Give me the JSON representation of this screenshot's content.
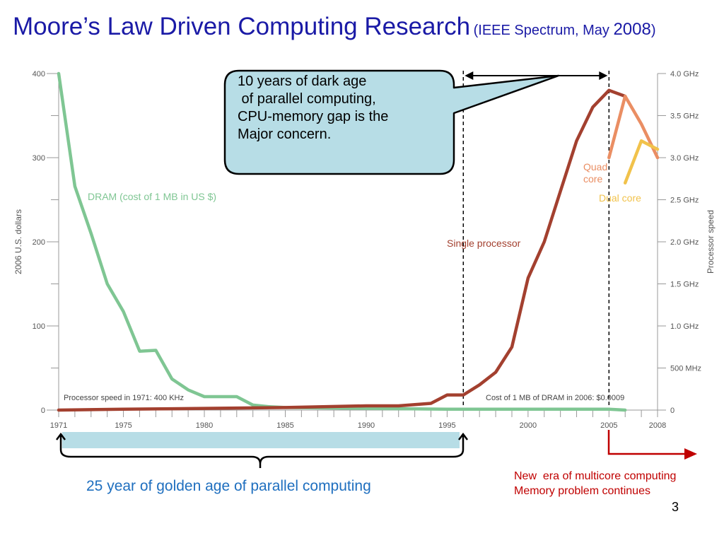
{
  "title": {
    "main": "Moore’s Law Driven Computing Research",
    "sub_open": "(IEEE Spectrum, May ",
    "sub_year": "2008",
    "sub_close": ")"
  },
  "callout": {
    "text": "10 years of dark age\n of parallel computing,\nCPU-memory gap is the\nMajor concern."
  },
  "golden_age_label": "25 year of golden age of parallel computing",
  "multicore_label": "New  era of multicore computing\nMemory problem continues",
  "page_number": "3",
  "colors": {
    "title": "#1a1aa6",
    "dram": "#7fc693",
    "single": "#a3402f",
    "quad": "#ea8e63",
    "dual": "#f1c24b",
    "callout_fill": "#b7dde6",
    "arrow_red": "#c00000",
    "golden_text": "#1f6fbf"
  },
  "chart_data": {
    "type": "line",
    "x_ticks": [
      "1971",
      "1975",
      "1980",
      "1985",
      "1990",
      "1995",
      "2000",
      "2005",
      "2008"
    ],
    "x_range": [
      1971,
      2008
    ],
    "y_left": {
      "label": "2006 U.S. dollars",
      "range": [
        0,
        400
      ],
      "ticks": [
        "0",
        "100",
        "200",
        "300",
        "400"
      ]
    },
    "y_right": {
      "label": "Processor speed",
      "range_ghz": [
        0,
        4.0
      ],
      "ticks": [
        "0",
        "500 MHz",
        "1.0 GHz",
        "1.5 GHz",
        "2.0 GHz",
        "2.5 GHz",
        "3.0 GHz",
        "3.5 GHz",
        "4.0 GHz"
      ]
    },
    "annotations": {
      "processor_1971": "Processor speed in 1971: 400 KHz",
      "dram_2006": "Cost of 1 MB of DRAM in 2006: $0.0009"
    },
    "series": [
      {
        "name": "DRAM (cost of 1 MB in US $)",
        "axis": "left",
        "x": [
          1971,
          1972,
          1973,
          1974,
          1975,
          1976,
          1977,
          1978,
          1979,
          1980,
          1981,
          1982,
          1983,
          1984,
          1985,
          1990,
          1995,
          2000,
          2005,
          2006
        ],
        "y": [
          400,
          266,
          210,
          150,
          117,
          70,
          71,
          37,
          24,
          16,
          16,
          16,
          6,
          4,
          3,
          2,
          1,
          1,
          1,
          0.0009
        ]
      },
      {
        "name": "Single processor",
        "axis": "right",
        "x": [
          1971,
          1975,
          1980,
          1985,
          1990,
          1992,
          1994,
          1995,
          1996,
          1997,
          1998,
          1999,
          2000,
          2001,
          2002,
          2003,
          2004,
          2005,
          2006
        ],
        "y": [
          0.0004,
          0.01,
          0.02,
          0.03,
          0.05,
          0.05,
          0.08,
          0.18,
          0.18,
          0.3,
          0.45,
          0.75,
          1.57,
          2.0,
          2.6,
          3.2,
          3.6,
          3.8,
          3.73
        ]
      },
      {
        "name": "Quad core",
        "axis": "right",
        "x": [
          2005,
          2006,
          2007,
          2008
        ],
        "y": [
          3.0,
          3.73,
          3.4,
          3.0
        ]
      },
      {
        "name": "Dual core",
        "axis": "right",
        "x": [
          2006,
          2007,
          2008
        ],
        "y": [
          2.7,
          3.2,
          3.1
        ]
      }
    ],
    "markers": {
      "dark_age_start": 1996,
      "dark_age_end": 2005
    }
  }
}
